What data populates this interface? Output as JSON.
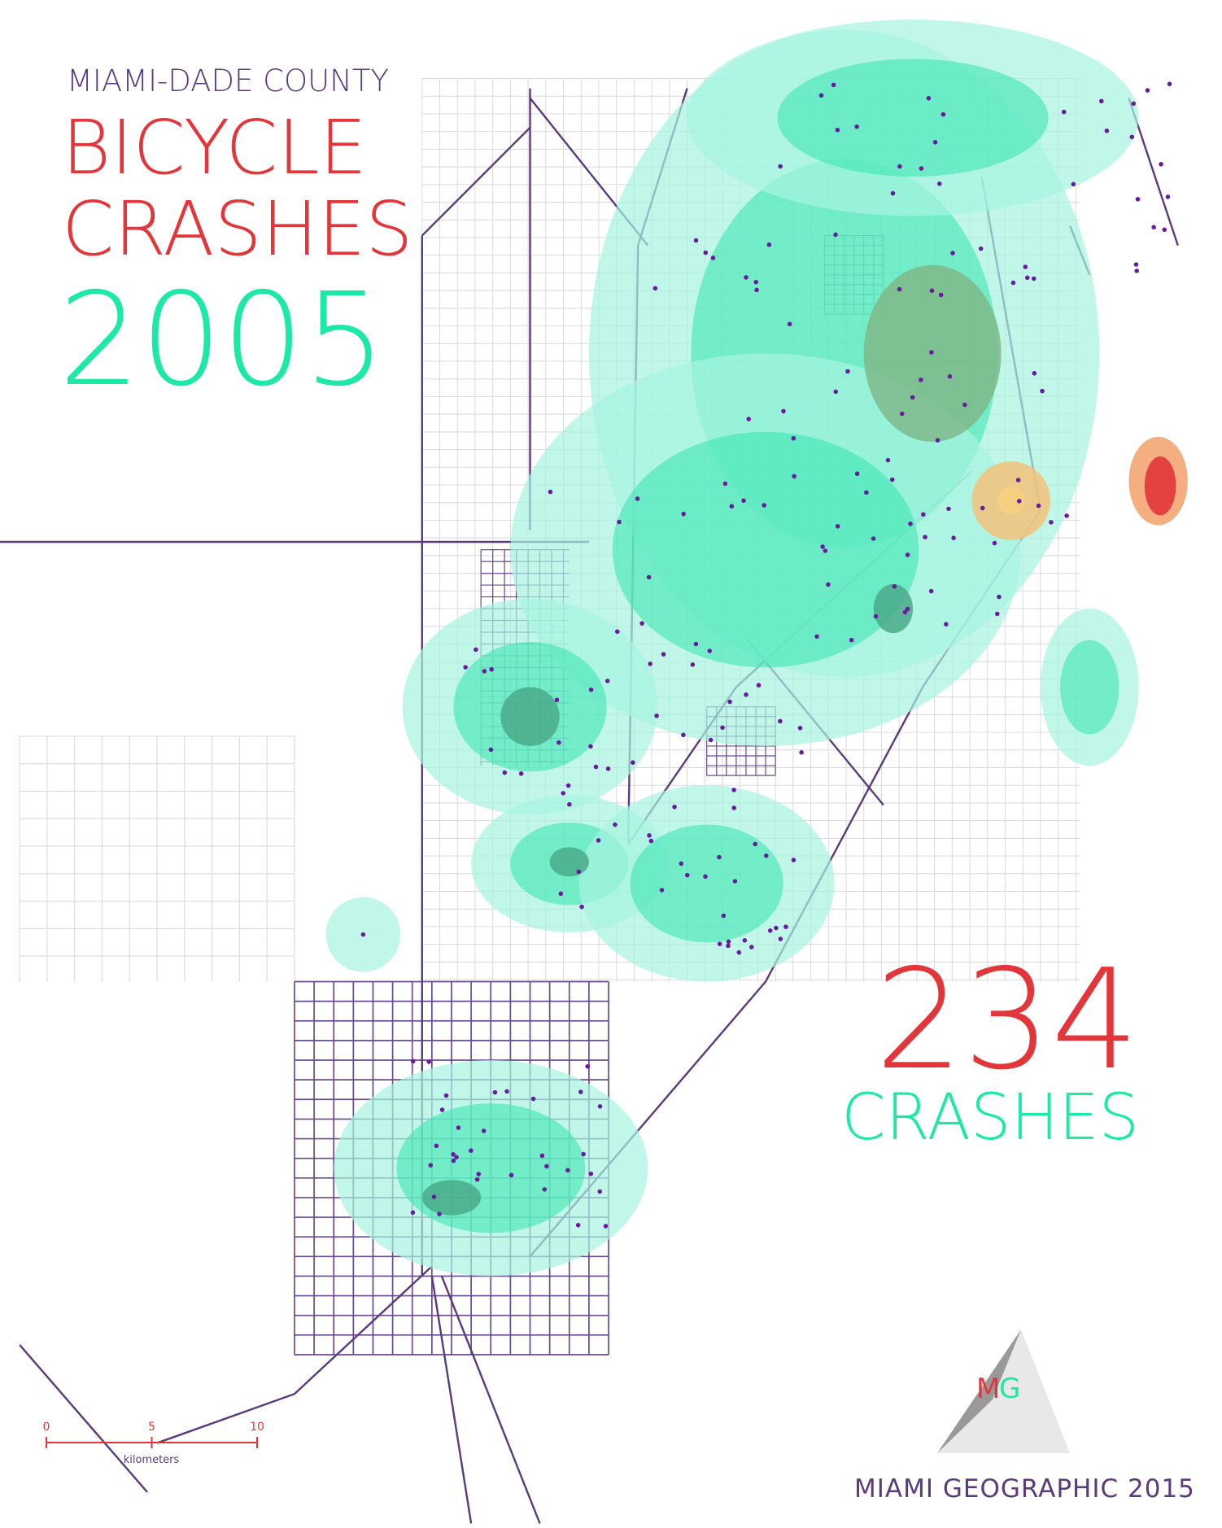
{
  "header": {
    "region": "MIAMI-DADE COUNTY",
    "line1": "BICYCLE",
    "line2": "CRASHES",
    "year": "2005"
  },
  "total": {
    "count": 234,
    "label": "CRASHES"
  },
  "scale_bar": {
    "ticks": [
      0,
      5,
      10
    ],
    "unit": "kilometers"
  },
  "logo": {
    "left": "M",
    "right": "G"
  },
  "footer": "MIAMI GEOGRAPHIC 2015"
}
